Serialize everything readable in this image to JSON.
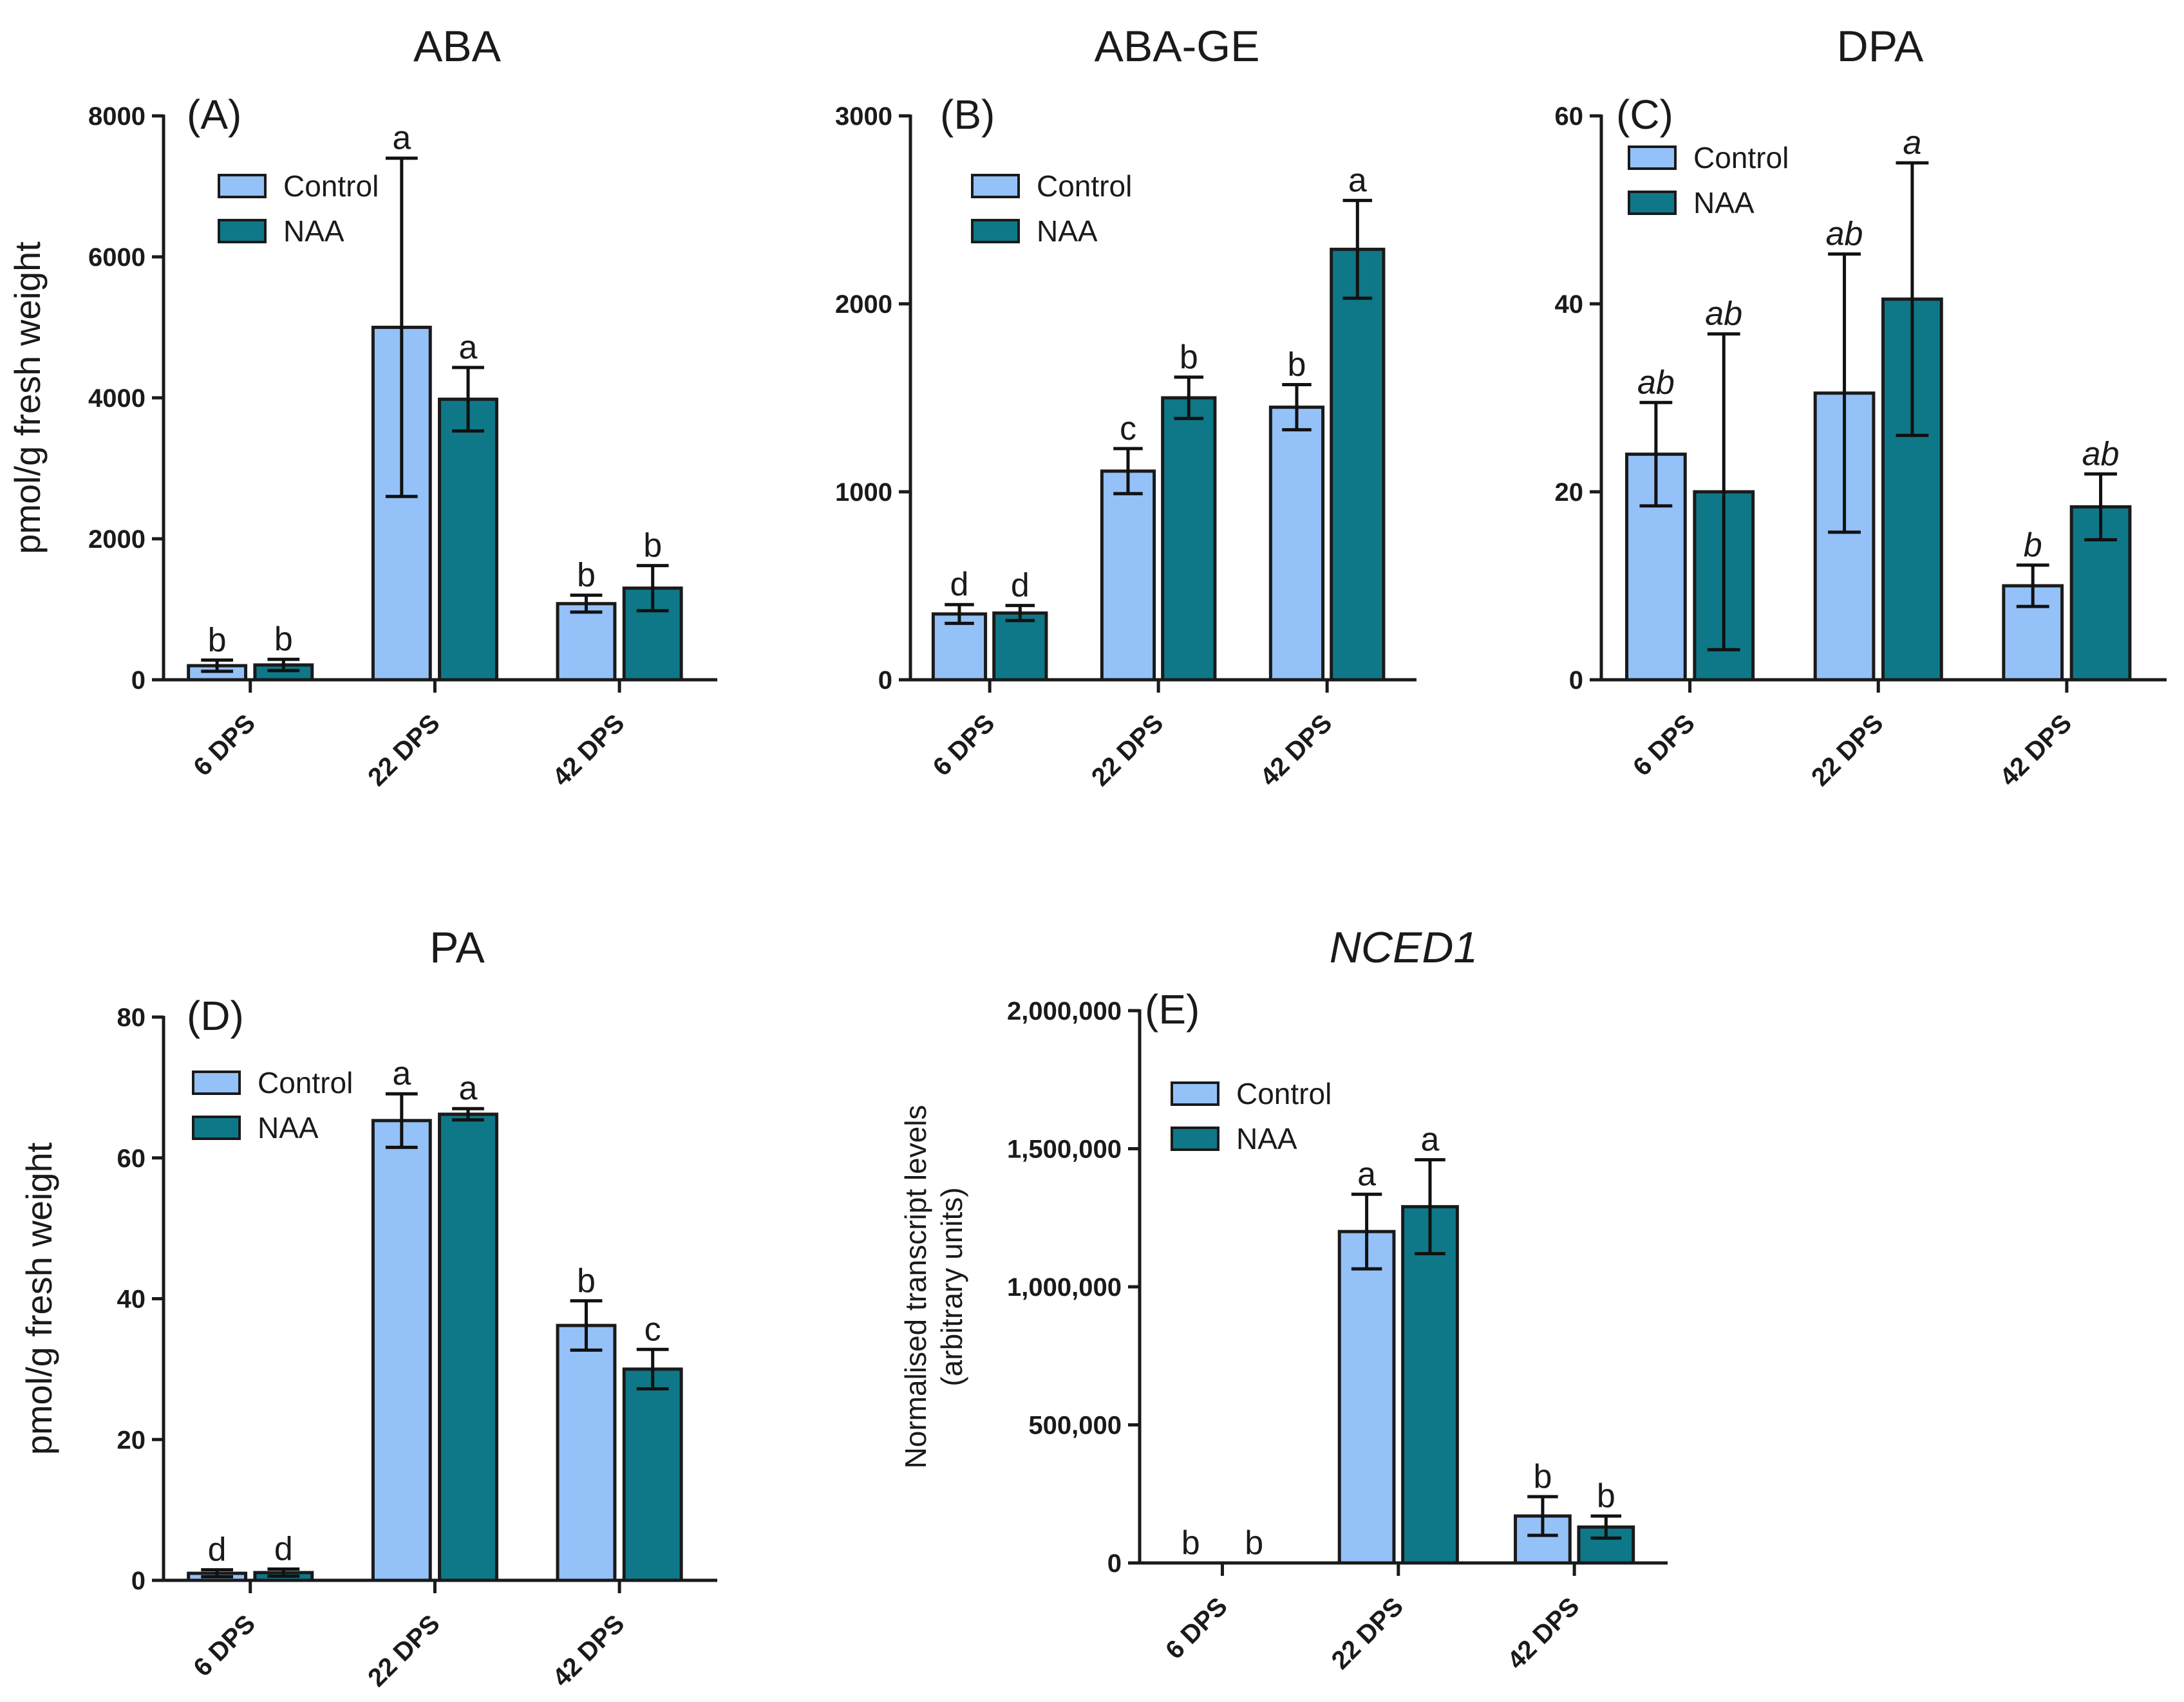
{
  "colors": {
    "control": "#94c1f7",
    "naa": "#0e7888",
    "stroke": "#1a1a1a"
  },
  "chart_data": [
    {
      "type": "bar",
      "id": "A",
      "letter": "(A)",
      "title": "ABA",
      "title_italic": false,
      "ylabel": [
        "pmol/g fresh weight"
      ],
      "xlabel": "",
      "categories": [
        "6 DPS",
        "22 DPS",
        "42 DPS"
      ],
      "ylim": [
        0,
        8000
      ],
      "yticks": [
        0,
        2000,
        4000,
        6000,
        8000
      ],
      "ytick_labels": [
        "0",
        "2000",
        "4000",
        "6000",
        "8000"
      ],
      "legend": {
        "entries": [
          "Control",
          "NAA"
        ],
        "placement": "upper-left"
      },
      "sig_italic": false,
      "series": [
        {
          "name": "Control",
          "values": [
            200,
            5000,
            1080
          ],
          "err": [
            80,
            2400,
            120
          ],
          "sig": [
            "b",
            "a",
            "b"
          ]
        },
        {
          "name": "NAA",
          "values": [
            210,
            3980,
            1300
          ],
          "err": [
            80,
            450,
            320
          ],
          "sig": [
            "b",
            "a",
            "b"
          ]
        }
      ]
    },
    {
      "type": "bar",
      "id": "B",
      "letter": "(B)",
      "title": "ABA-GE",
      "title_italic": false,
      "ylabel": [],
      "xlabel": "",
      "categories": [
        "6 DPS",
        "22 DPS",
        "42 DPS"
      ],
      "ylim": [
        0,
        3000
      ],
      "yticks": [
        0,
        1000,
        2000,
        3000
      ],
      "ytick_labels": [
        "0",
        "1000",
        "2000",
        "3000"
      ],
      "legend": {
        "entries": [
          "Control",
          "NAA"
        ],
        "placement": "upper-left"
      },
      "sig_italic": false,
      "series": [
        {
          "name": "Control",
          "values": [
            350,
            1110,
            1450
          ],
          "err": [
            50,
            120,
            120
          ],
          "sig": [
            "d",
            "c",
            "b"
          ]
        },
        {
          "name": "NAA",
          "values": [
            355,
            1500,
            2290
          ],
          "err": [
            40,
            110,
            260
          ],
          "sig": [
            "d",
            "b",
            "a"
          ]
        }
      ]
    },
    {
      "type": "bar",
      "id": "C",
      "letter": "(C)",
      "title": "DPA",
      "title_italic": false,
      "ylabel": [],
      "xlabel": "",
      "categories": [
        "6 DPS",
        "22 DPS",
        "42 DPS"
      ],
      "ylim": [
        0,
        60
      ],
      "yticks": [
        0,
        20,
        40,
        60
      ],
      "ytick_labels": [
        "0",
        "20",
        "40",
        "60"
      ],
      "legend": {
        "entries": [
          "Control",
          "NAA"
        ],
        "placement": "upper-left"
      },
      "sig_italic": true,
      "series": [
        {
          "name": "Control",
          "values": [
            24,
            30.5,
            10
          ],
          "err": [
            5.5,
            14.8,
            2.2
          ],
          "sig": [
            "ab",
            "ab",
            "b"
          ]
        },
        {
          "name": "NAA",
          "values": [
            20,
            40.5,
            18.4
          ],
          "err": [
            16.8,
            14.5,
            3.5
          ],
          "sig": [
            "ab",
            "a",
            "ab"
          ]
        }
      ]
    },
    {
      "type": "bar",
      "id": "D",
      "letter": "(D)",
      "title": "PA",
      "title_italic": false,
      "ylabel": [
        "pmol/g fresh weight"
      ],
      "xlabel": "",
      "categories": [
        "6 DPS",
        "22 DPS",
        "42 DPS"
      ],
      "ylim": [
        0,
        80
      ],
      "yticks": [
        0,
        20,
        40,
        60,
        80
      ],
      "ytick_labels": [
        "0",
        "20",
        "40",
        "60",
        "80"
      ],
      "legend": {
        "entries": [
          "Control",
          "NAA"
        ],
        "placement": "upper-left"
      },
      "sig_italic": false,
      "series": [
        {
          "name": "Control",
          "values": [
            1,
            65.3,
            36.2
          ],
          "err": [
            0.5,
            3.8,
            3.5
          ],
          "sig": [
            "d",
            "a",
            "b"
          ]
        },
        {
          "name": "NAA",
          "values": [
            1.1,
            66.2,
            30
          ],
          "err": [
            0.5,
            0.8,
            2.8
          ],
          "sig": [
            "d",
            "a",
            "c"
          ]
        }
      ]
    },
    {
      "type": "bar",
      "id": "E",
      "letter": "(E)",
      "title": "NCED1",
      "title_italic": true,
      "ylabel": [
        "Normalised transcript levels",
        "(arbitrary units)"
      ],
      "xlabel": "",
      "categories": [
        "6 DPS",
        "22 DPS",
        "42 DPS"
      ],
      "ylim": [
        0,
        2000000
      ],
      "yticks": [
        0,
        500000,
        1000000,
        1500000,
        2000000
      ],
      "ytick_labels": [
        "0",
        "500,000",
        "1,000,000",
        "1,500,000",
        "2,000,000"
      ],
      "legend": {
        "entries": [
          "Control",
          "NAA"
        ],
        "placement": "upper-left"
      },
      "sig_italic": false,
      "series": [
        {
          "name": "Control",
          "values": [
            0,
            1200000,
            170000
          ],
          "err": [
            0,
            135000,
            70000
          ],
          "sig": [
            "b",
            "a",
            "b"
          ]
        },
        {
          "name": "NAA",
          "values": [
            0,
            1290000,
            130000
          ],
          "err": [
            0,
            170000,
            40000
          ],
          "sig": [
            "b",
            "a",
            "b"
          ]
        }
      ]
    }
  ]
}
